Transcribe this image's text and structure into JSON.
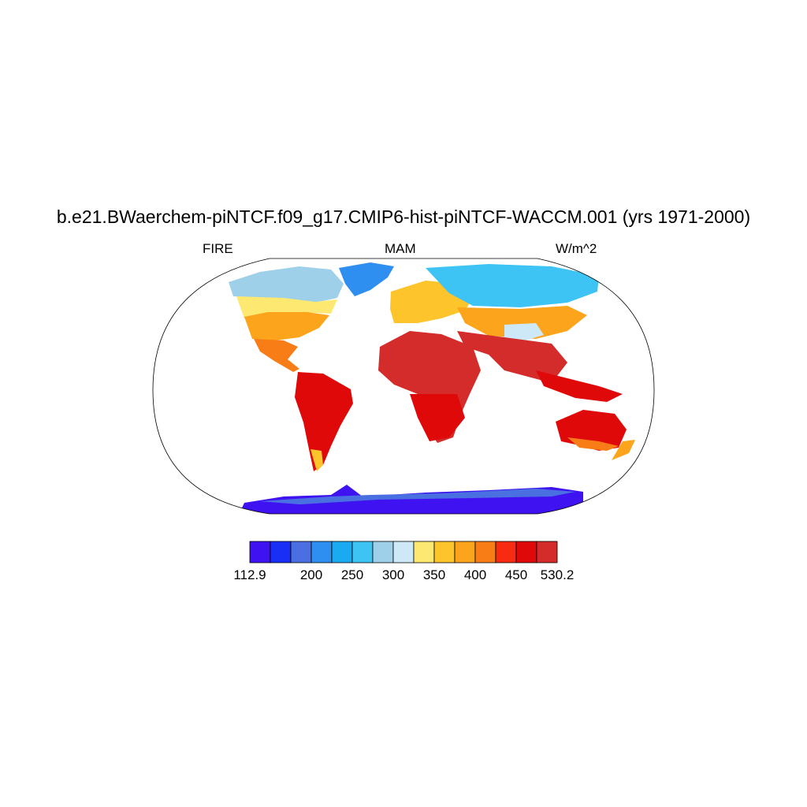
{
  "title": "b.e21.BWaerchem-piNTCF.f09_g17.CMIP6-hist-piNTCF-WACCM.001 (yrs 1971-2000)",
  "subtitles": {
    "left": "FIRE",
    "center": "MAM",
    "right": "W/m^2"
  },
  "colorbar": {
    "colors": [
      "#3f13f1",
      "#1a2ff5",
      "#4a6fe0",
      "#2e8ff0",
      "#1aaaf0",
      "#3dc4f4",
      "#9ed0ea",
      "#cde8f7",
      "#fde971",
      "#fdc42c",
      "#fca51c",
      "#f87d17",
      "#f62b12",
      "#e0090a",
      "#d42b2b"
    ],
    "labels": [
      "112.9",
      "200",
      "250",
      "300",
      "350",
      "400",
      "450",
      "530.2"
    ]
  },
  "map": {
    "projection": "Robinson",
    "variable": "FIRE",
    "season": "MAM",
    "units": "W/m^2"
  }
}
